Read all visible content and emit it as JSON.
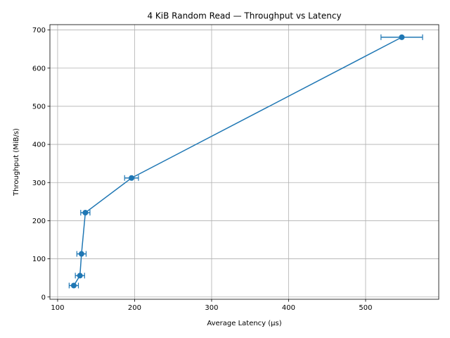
{
  "chart_data": {
    "type": "line",
    "title": "4 KiB Random Read — Throughput vs Latency",
    "xlabel": "Average Latency (µs)",
    "ylabel": "Throughput (MiB/s)",
    "xlim": [
      90,
      595
    ],
    "ylim": [
      -6,
      714
    ],
    "xticks": [
      100,
      200,
      300,
      400,
      500
    ],
    "yticks": [
      0,
      100,
      200,
      300,
      400,
      500,
      600,
      700
    ],
    "grid": true,
    "color": "#1f77b4",
    "marker": "circle",
    "series": [
      {
        "x": [
          121,
          129,
          131,
          136,
          196,
          547
        ],
        "y": [
          30,
          56,
          113,
          221,
          312,
          681
        ],
        "xerr": [
          6,
          6,
          6,
          6,
          9,
          27
        ]
      }
    ]
  }
}
